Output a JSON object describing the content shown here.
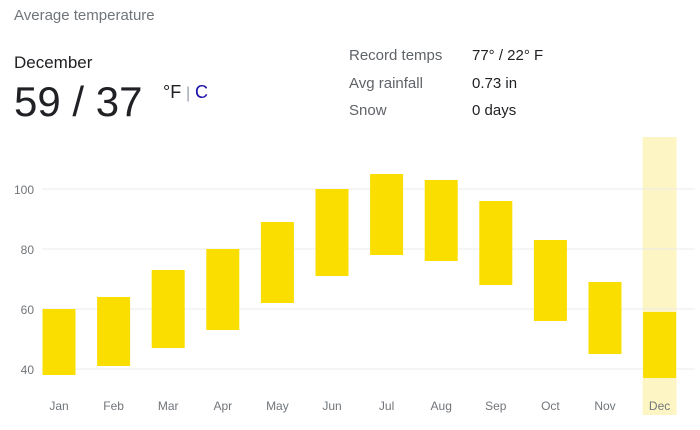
{
  "header": {
    "title": "Average temperature",
    "month": "December",
    "temps": "59 / 37",
    "unit_f": "°F",
    "unit_sep": "|",
    "unit_c": "C"
  },
  "stats": [
    {
      "label": "Record temps",
      "value": "77° / 22° F"
    },
    {
      "label": "Avg rainfall",
      "value": "0.73 in"
    },
    {
      "label": "Snow",
      "value": "0 days"
    }
  ],
  "chart_data": {
    "type": "range_bar",
    "categories": [
      "Jan",
      "Feb",
      "Mar",
      "Apr",
      "May",
      "Jun",
      "Jul",
      "Aug",
      "Sep",
      "Oct",
      "Nov",
      "Dec"
    ],
    "high": [
      60,
      64,
      73,
      80,
      89,
      100,
      105,
      103,
      96,
      83,
      69,
      59
    ],
    "low": [
      38,
      41,
      47,
      53,
      62,
      71,
      78,
      76,
      68,
      56,
      45,
      37
    ],
    "color": "#fade00",
    "highlight_category": "Dec",
    "highlight_color": "#fdf6c4",
    "ylim": [
      33,
      118
    ],
    "yticks": [
      40,
      60,
      80,
      100
    ],
    "grid": true
  }
}
